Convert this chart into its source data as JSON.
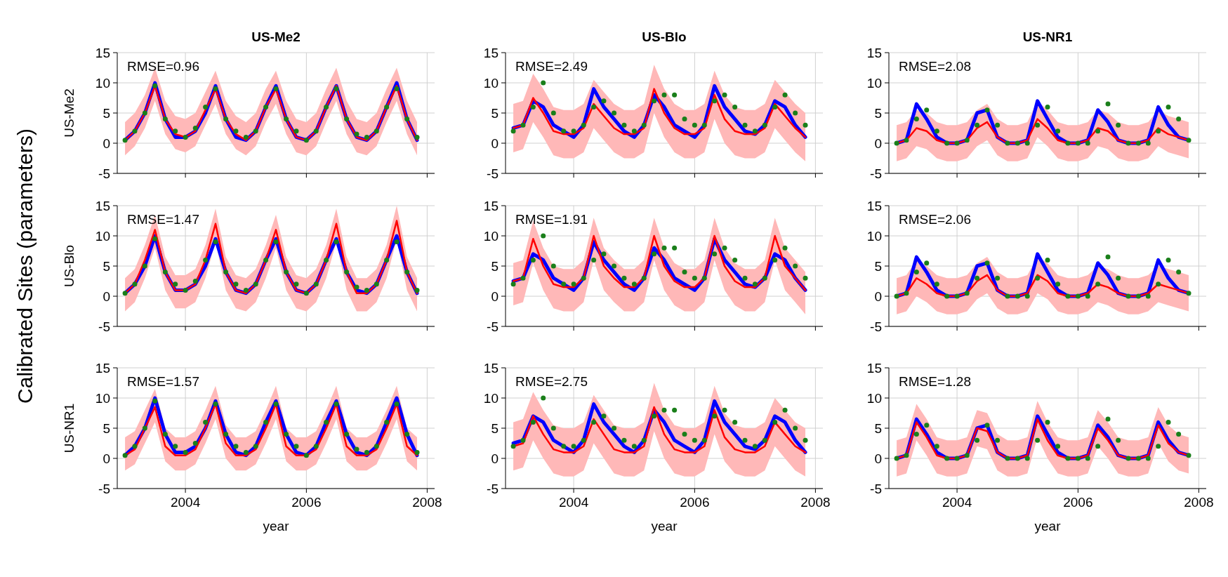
{
  "chart_data": [
    {
      "type": "line",
      "title": "US-Me2",
      "ylabel": "US-Me2",
      "annotations": [
        "RMSE=0.96"
      ],
      "tick_labels": "y",
      "grid": true,
      "xlim": [
        "2002-11-15",
        "2008-02-15"
      ],
      "xticks": [
        "2004",
        "2006",
        "2008"
      ],
      "ylim": [
        -5,
        15
      ],
      "yticks": [
        -5,
        0,
        5,
        10,
        15
      ],
      "x": [
        "2003-01",
        "2003-03",
        "2003-05",
        "2003-07",
        "2003-09",
        "2003-11",
        "2004-01",
        "2004-03",
        "2004-05",
        "2004-07",
        "2004-09",
        "2004-11",
        "2005-01",
        "2005-03",
        "2005-05",
        "2005-07",
        "2005-09",
        "2005-11",
        "2006-01",
        "2006-03",
        "2006-05",
        "2006-07",
        "2006-09",
        "2006-11",
        "2007-01",
        "2007-03",
        "2007-05",
        "2007-07",
        "2007-09",
        "2007-11"
      ],
      "series": [
        {
          "type": "line",
          "color": "#0000ff",
          "values": [
            0.5,
            2,
            5,
            10,
            4,
            1,
            1,
            2,
            5,
            9.5,
            4,
            1,
            0.5,
            2,
            6,
            9.5,
            4,
            1,
            0.5,
            2,
            6,
            9.5,
            4,
            1,
            0.5,
            2,
            6,
            10,
            4,
            0.5
          ]
        },
        {
          "type": "line",
          "color": "#ff0000",
          "values": [
            0.5,
            2,
            5,
            9.5,
            4,
            1.5,
            1,
            2,
            5.5,
            9,
            4,
            1.5,
            0.5,
            2,
            6,
            9,
            4,
            1,
            0.5,
            2,
            6,
            9.5,
            4,
            1,
            0.5,
            2,
            6,
            9.5,
            4,
            0.5
          ],
          "lower": [
            -2,
            -0.5,
            2.5,
            7,
            1.5,
            -1,
            -1.5,
            -0.5,
            3,
            6.5,
            1.5,
            -1,
            -2,
            -0.5,
            3.5,
            6.5,
            1.5,
            -1.5,
            -2,
            -0.5,
            3.5,
            7,
            1.5,
            -1.5,
            -2,
            -0.5,
            3.5,
            7,
            1.5,
            -2
          ],
          "upper": [
            3.5,
            5,
            8,
            12.5,
            7,
            4.5,
            4,
            5,
            8.5,
            12,
            7,
            4.5,
            3.5,
            5,
            9,
            12,
            7,
            4,
            3.5,
            5,
            9,
            12.5,
            7,
            4,
            3.5,
            5,
            9,
            12.5,
            7,
            3.5
          ]
        },
        {
          "type": "scatter",
          "marker": "circle",
          "color": "#1a7f1a",
          "values": [
            0.5,
            2,
            5,
            9.5,
            4,
            2,
            1,
            2.5,
            6,
            9,
            4,
            2,
            1,
            2,
            6,
            9,
            4,
            2,
            0.5,
            2,
            6,
            9,
            4,
            1.5,
            1,
            2,
            6,
            9,
            4,
            1
          ]
        }
      ]
    },
    {
      "type": "line",
      "title": "US-Blo",
      "annotations": [
        "RMSE=2.49"
      ],
      "tick_labels": "y",
      "grid": true,
      "xlim": [
        "2002-11-15",
        "2008-02-15"
      ],
      "xticks": [
        "2004",
        "2006",
        "2008"
      ],
      "ylim": [
        -5,
        15
      ],
      "yticks": [
        -5,
        0,
        5,
        10,
        15
      ],
      "x": [
        "2003-01",
        "2003-03",
        "2003-05",
        "2003-07",
        "2003-09",
        "2003-11",
        "2004-01",
        "2004-03",
        "2004-05",
        "2004-07",
        "2004-09",
        "2004-11",
        "2005-01",
        "2005-03",
        "2005-05",
        "2005-07",
        "2005-09",
        "2005-11",
        "2006-01",
        "2006-03",
        "2006-05",
        "2006-07",
        "2006-09",
        "2006-11",
        "2007-01",
        "2007-03",
        "2007-05",
        "2007-07",
        "2007-09",
        "2007-11"
      ],
      "series": [
        {
          "type": "line",
          "color": "#0000ff",
          "values": [
            2.5,
            3,
            7,
            6,
            3,
            2,
            1,
            3,
            9,
            6,
            4,
            2,
            1,
            3,
            8,
            6,
            3,
            2,
            1,
            3,
            9.5,
            6,
            4,
            2,
            1.5,
            3,
            7,
            6,
            3,
            1
          ]
        },
        {
          "type": "line",
          "color": "#ff0000",
          "values": [
            2.5,
            3,
            7.5,
            5,
            2,
            1.5,
            1.5,
            2.5,
            6.5,
            4.5,
            2.5,
            1.5,
            1.5,
            2.5,
            9,
            5,
            2.5,
            1.5,
            1.5,
            2.5,
            8,
            4,
            2,
            1.5,
            1.5,
            2.5,
            6.5,
            4.5,
            2.5,
            1
          ],
          "lower": [
            -1.5,
            -1,
            3.5,
            1,
            -2,
            -2.5,
            -2.5,
            -1.5,
            2.5,
            0.5,
            -1.5,
            -2.5,
            -2.5,
            -1.5,
            5,
            1,
            -1.5,
            -2.5,
            -2.5,
            -1.5,
            4,
            0,
            -2,
            -2.5,
            -2.5,
            -1.5,
            2.5,
            0.5,
            -1.5,
            -3
          ],
          "upper": [
            6.5,
            7,
            11.5,
            9,
            6,
            5.5,
            5.5,
            6.5,
            10.5,
            8.5,
            6.5,
            5.5,
            5.5,
            6.5,
            13,
            9,
            6.5,
            5.5,
            5.5,
            6.5,
            12,
            8,
            6,
            5.5,
            5.5,
            6.5,
            10.5,
            8.5,
            6.5,
            5
          ]
        },
        {
          "type": "scatter",
          "marker": "circle",
          "color": "#1a7f1a",
          "values": [
            2,
            3,
            6,
            10,
            5,
            2,
            2,
            3,
            6,
            7,
            5,
            3,
            2,
            3,
            7,
            8,
            8,
            4,
            3,
            3,
            7,
            8,
            6,
            3,
            2,
            3,
            6,
            8,
            5,
            3
          ]
        }
      ]
    },
    {
      "type": "line",
      "title": "US-NR1",
      "annotations": [
        "RMSE=2.08"
      ],
      "tick_labels": "y",
      "grid": true,
      "xlim": [
        "2002-11-15",
        "2008-02-15"
      ],
      "xticks": [
        "2004",
        "2006",
        "2008"
      ],
      "ylim": [
        -5,
        15
      ],
      "yticks": [
        -5,
        0,
        5,
        10,
        15
      ],
      "x": [
        "2003-01",
        "2003-03",
        "2003-05",
        "2003-07",
        "2003-09",
        "2003-11",
        "2004-01",
        "2004-03",
        "2004-05",
        "2004-07",
        "2004-09",
        "2004-11",
        "2005-01",
        "2005-03",
        "2005-05",
        "2005-07",
        "2005-09",
        "2005-11",
        "2006-01",
        "2006-03",
        "2006-05",
        "2006-07",
        "2006-09",
        "2006-11",
        "2007-01",
        "2007-03",
        "2007-05",
        "2007-07",
        "2007-09",
        "2007-11"
      ],
      "series": [
        {
          "type": "line",
          "color": "#0000ff",
          "values": [
            0,
            0.5,
            6.5,
            4,
            1,
            0,
            0,
            0.5,
            5,
            5.5,
            1,
            0,
            0,
            0.5,
            7,
            4,
            1,
            0,
            0,
            0.5,
            5.5,
            3.5,
            0.5,
            0,
            0,
            0.5,
            6,
            3,
            1,
            0.5
          ]
        },
        {
          "type": "line",
          "color": "#ff0000",
          "values": [
            0,
            0.5,
            2.5,
            2,
            0.5,
            0,
            0,
            0.5,
            2.5,
            3.5,
            1,
            0,
            0,
            0.5,
            4,
            2.5,
            0.5,
            0,
            0,
            0.5,
            2.5,
            2,
            0.5,
            0,
            0,
            0.5,
            2.5,
            1.5,
            1,
            0.5
          ],
          "lower": [
            -3,
            -2.5,
            -0.5,
            -1,
            -2.5,
            -3,
            -3,
            -2.5,
            -0.5,
            0.5,
            -2,
            -3,
            -3,
            -2.5,
            1,
            -0.5,
            -2.5,
            -3,
            -3,
            -2.5,
            -0.5,
            -1,
            -2.5,
            -3,
            -3,
            -2.5,
            -0.5,
            -1.5,
            -2,
            -2.5
          ],
          "upper": [
            3,
            3.5,
            5.5,
            5,
            3.5,
            3,
            3,
            3.5,
            5.5,
            6.5,
            4,
            3,
            3,
            3.5,
            7,
            5.5,
            3.5,
            3,
            3,
            3.5,
            5.5,
            5,
            3.5,
            3,
            3,
            3.5,
            5.5,
            4.5,
            4,
            3.5
          ]
        },
        {
          "type": "scatter",
          "marker": "circle",
          "color": "#1a7f1a",
          "values": [
            0,
            0.5,
            4,
            5.5,
            2,
            0,
            0,
            0.5,
            3,
            5.5,
            3,
            0,
            0,
            0,
            3,
            6,
            2,
            0,
            0,
            0,
            2,
            6.5,
            3,
            0,
            0,
            0,
            2,
            6,
            4,
            0.5
          ]
        }
      ]
    },
    {
      "type": "line",
      "ylabel": "US-Blo",
      "annotations": [
        "RMSE=1.47",
        "Calibrated Sites (parameters)"
      ],
      "tick_labels": "y",
      "grid": true,
      "xlim": [
        "2002-11-15",
        "2008-02-15"
      ],
      "xticks": [
        "2004",
        "2006",
        "2008"
      ],
      "ylim": [
        -5,
        15
      ],
      "yticks": [
        -5,
        0,
        5,
        10,
        15
      ],
      "x": [
        "2003-01",
        "2003-03",
        "2003-05",
        "2003-07",
        "2003-09",
        "2003-11",
        "2004-01",
        "2004-03",
        "2004-05",
        "2004-07",
        "2004-09",
        "2004-11",
        "2005-01",
        "2005-03",
        "2005-05",
        "2005-07",
        "2005-09",
        "2005-11",
        "2006-01",
        "2006-03",
        "2006-05",
        "2006-07",
        "2006-09",
        "2006-11",
        "2007-01",
        "2007-03",
        "2007-05",
        "2007-07",
        "2007-09",
        "2007-11"
      ],
      "series": [
        {
          "type": "line",
          "color": "#0000ff",
          "values": [
            0.5,
            2,
            5,
            10,
            4,
            1,
            1,
            2,
            5,
            9.5,
            4,
            1,
            0.5,
            2,
            6,
            9.5,
            4,
            1,
            0.5,
            2,
            6,
            9.5,
            4,
            1,
            0.5,
            2,
            6,
            10,
            4,
            0.5
          ]
        },
        {
          "type": "line",
          "color": "#ff0000",
          "values": [
            0.5,
            2,
            6,
            11,
            4,
            1,
            1,
            2,
            6,
            12,
            4,
            1,
            0.5,
            2,
            6,
            11,
            4,
            1,
            0.5,
            2,
            6,
            12,
            4,
            0.5,
            0.5,
            2,
            6,
            12.5,
            4,
            0.5
          ],
          "lower": [
            -2.5,
            -1,
            3,
            8,
            1,
            -2,
            -2,
            -1,
            3,
            9,
            1,
            -2,
            -2.5,
            -1,
            3,
            8,
            1,
            -2,
            -2.5,
            -1,
            3,
            9,
            1,
            -2.5,
            -2.5,
            -1,
            3,
            9.5,
            1,
            -2.5
          ],
          "upper": [
            3,
            4.5,
            8.5,
            13.5,
            6.5,
            3.5,
            3.5,
            4.5,
            8.5,
            14.5,
            6.5,
            3.5,
            3,
            4.5,
            8.5,
            13.5,
            6.5,
            3.5,
            3,
            4.5,
            8.5,
            14.5,
            6.5,
            3,
            3,
            4.5,
            8.5,
            15,
            6.5,
            3
          ]
        },
        {
          "type": "scatter",
          "marker": "circle",
          "color": "#1a7f1a",
          "values": [
            0.5,
            2,
            5,
            9.5,
            4,
            2,
            1,
            2.5,
            6,
            9,
            4,
            2,
            1,
            2,
            6,
            9,
            4,
            2,
            0.5,
            2,
            6,
            9,
            4,
            1.5,
            1,
            2,
            6,
            9,
            4,
            1
          ]
        }
      ]
    },
    {
      "type": "line",
      "annotations": [
        "RMSE=1.91"
      ],
      "tick_labels": "y",
      "grid": true,
      "xlim": [
        "2002-11-15",
        "2008-02-15"
      ],
      "xticks": [
        "2004",
        "2006",
        "2008"
      ],
      "ylim": [
        -5,
        15
      ],
      "yticks": [
        -5,
        0,
        5,
        10,
        15
      ],
      "x": [
        "2003-01",
        "2003-03",
        "2003-05",
        "2003-07",
        "2003-09",
        "2003-11",
        "2004-01",
        "2004-03",
        "2004-05",
        "2004-07",
        "2004-09",
        "2004-11",
        "2005-01",
        "2005-03",
        "2005-05",
        "2005-07",
        "2005-09",
        "2005-11",
        "2006-01",
        "2006-03",
        "2006-05",
        "2006-07",
        "2006-09",
        "2006-11",
        "2007-01",
        "2007-03",
        "2007-05",
        "2007-07",
        "2007-09",
        "2007-11"
      ],
      "series": [
        {
          "type": "line",
          "color": "#0000ff",
          "values": [
            2.5,
            3,
            7,
            6,
            3,
            2,
            1,
            3,
            9,
            6,
            4,
            2,
            1,
            3,
            8,
            6,
            3,
            2,
            1,
            3,
            9.5,
            6,
            4,
            2,
            1.5,
            3,
            7,
            6,
            3,
            1
          ]
        },
        {
          "type": "line",
          "color": "#ff0000",
          "values": [
            2.5,
            3,
            9.5,
            5,
            2,
            1.5,
            1.5,
            3,
            10,
            5,
            3,
            1.5,
            1.5,
            3,
            10,
            5,
            2.5,
            1.5,
            1.5,
            3,
            10,
            5,
            2.5,
            1.5,
            1.5,
            3,
            10,
            5,
            3,
            1
          ],
          "lower": [
            -1.5,
            -1,
            5.5,
            1,
            -2,
            -2.5,
            -2.5,
            -1,
            6,
            1,
            -1,
            -2.5,
            -2.5,
            -1,
            6,
            1,
            -1.5,
            -2.5,
            -2.5,
            -1,
            6,
            1,
            -1.5,
            -2.5,
            -2.5,
            -1,
            6,
            1,
            -1,
            -3
          ],
          "upper": [
            5.5,
            6,
            12.5,
            8,
            5,
            4.5,
            4.5,
            6,
            13,
            8,
            6,
            4.5,
            4.5,
            6,
            13,
            8,
            5.5,
            4.5,
            4.5,
            6,
            13,
            8,
            5.5,
            4.5,
            4.5,
            6,
            13,
            8,
            6,
            4
          ]
        },
        {
          "type": "scatter",
          "marker": "circle",
          "color": "#1a7f1a",
          "values": [
            2,
            3,
            6,
            10,
            5,
            2,
            2,
            3,
            6,
            7,
            5,
            3,
            2,
            3,
            7,
            8,
            8,
            4,
            3,
            3,
            7,
            8,
            6,
            3,
            2,
            3,
            6,
            8,
            5,
            3
          ]
        }
      ]
    },
    {
      "type": "line",
      "annotations": [
        "RMSE=2.06"
      ],
      "tick_labels": "y",
      "grid": true,
      "xlim": [
        "2002-11-15",
        "2008-02-15"
      ],
      "xticks": [
        "2004",
        "2006",
        "2008"
      ],
      "ylim": [
        -5,
        15
      ],
      "yticks": [
        -5,
        0,
        5,
        10,
        15
      ],
      "x": [
        "2003-01",
        "2003-03",
        "2003-05",
        "2003-07",
        "2003-09",
        "2003-11",
        "2004-01",
        "2004-03",
        "2004-05",
        "2004-07",
        "2004-09",
        "2004-11",
        "2005-01",
        "2005-03",
        "2005-05",
        "2005-07",
        "2005-09",
        "2005-11",
        "2006-01",
        "2006-03",
        "2006-05",
        "2006-07",
        "2006-09",
        "2006-11",
        "2007-01",
        "2007-03",
        "2007-05",
        "2007-07",
        "2007-09",
        "2007-11"
      ],
      "series": [
        {
          "type": "line",
          "color": "#0000ff",
          "values": [
            0,
            0.5,
            6.5,
            4,
            1,
            0,
            0,
            0.5,
            5,
            5.5,
            1,
            0,
            0,
            0.5,
            7,
            4,
            1,
            0,
            0,
            0.5,
            5.5,
            3.5,
            0.5,
            0,
            0,
            0.5,
            6,
            3,
            1,
            0.5
          ]
        },
        {
          "type": "line",
          "color": "#ff0000",
          "values": [
            0,
            0.5,
            3,
            2,
            0.5,
            0,
            0,
            0.5,
            2.5,
            3.5,
            1,
            0,
            0,
            0.5,
            3.5,
            2.5,
            0.5,
            0,
            0,
            0.5,
            2,
            1.5,
            0.5,
            0,
            0,
            0.5,
            2,
            1.5,
            1,
            0.5
          ],
          "lower": [
            -3,
            -2.5,
            0,
            -1,
            -2.5,
            -3,
            -3,
            -2.5,
            -0.5,
            0.5,
            -2,
            -3,
            -3,
            -2.5,
            0.5,
            -0.5,
            -2.5,
            -3,
            -3,
            -2.5,
            -1,
            -1.5,
            -2.5,
            -3,
            -3,
            -2.5,
            -1,
            -1.5,
            -2,
            -2.5
          ],
          "upper": [
            3,
            3.5,
            6,
            5,
            3.5,
            3,
            3,
            3.5,
            5.5,
            6.5,
            4,
            3,
            3,
            3.5,
            6.5,
            5.5,
            3.5,
            3,
            3,
            3.5,
            5,
            4.5,
            3.5,
            3,
            3,
            3.5,
            5,
            4.5,
            4,
            3.5
          ]
        },
        {
          "type": "scatter",
          "marker": "circle",
          "color": "#1a7f1a",
          "values": [
            0,
            0.5,
            4,
            5.5,
            2,
            0,
            0,
            0.5,
            3,
            5.5,
            3,
            0,
            0,
            0,
            3,
            6,
            2,
            0,
            0,
            0,
            2,
            6.5,
            3,
            0,
            0,
            0,
            2,
            6,
            4,
            0.5
          ]
        }
      ]
    },
    {
      "type": "line",
      "ylabel": "US-NR1",
      "xlabel": "year",
      "annotations": [
        "RMSE=1.57"
      ],
      "grid": true,
      "xlim": [
        "2002-11-15",
        "2008-02-15"
      ],
      "xticks": [
        "2004",
        "2006",
        "2008"
      ],
      "ylim": [
        -5,
        15
      ],
      "yticks": [
        -5,
        0,
        5,
        10,
        15
      ],
      "x": [
        "2003-01",
        "2003-03",
        "2003-05",
        "2003-07",
        "2003-09",
        "2003-11",
        "2004-01",
        "2004-03",
        "2004-05",
        "2004-07",
        "2004-09",
        "2004-11",
        "2005-01",
        "2005-03",
        "2005-05",
        "2005-07",
        "2005-09",
        "2005-11",
        "2006-01",
        "2006-03",
        "2006-05",
        "2006-07",
        "2006-09",
        "2006-11",
        "2007-01",
        "2007-03",
        "2007-05",
        "2007-07",
        "2007-09",
        "2007-11"
      ],
      "series": [
        {
          "type": "line",
          "color": "#0000ff",
          "values": [
            0.5,
            2,
            5,
            10,
            4,
            1,
            1,
            2,
            5,
            9.5,
            4,
            1,
            0.5,
            2,
            6,
            9.5,
            4,
            1,
            0.5,
            2,
            6,
            9.5,
            4,
            1,
            0.5,
            2,
            6,
            10,
            4,
            0.5
          ]
        },
        {
          "type": "line",
          "color": "#ff0000",
          "values": [
            0.5,
            1.5,
            5,
            8.5,
            2,
            0.5,
            0.5,
            1.5,
            5,
            9,
            2.5,
            0.5,
            0.5,
            1.5,
            5,
            9,
            2,
            0.5,
            0.5,
            1.5,
            5,
            9,
            2,
            0.5,
            0.5,
            1.5,
            5,
            9,
            2,
            0.5
          ],
          "lower": [
            -2,
            -1,
            2.5,
            6,
            -0.5,
            -2,
            -2,
            -1,
            2.5,
            6.5,
            0,
            -2,
            -2,
            -1,
            2.5,
            6.5,
            -0.5,
            -2,
            -2,
            -1,
            2.5,
            6.5,
            -0.5,
            -2,
            -2,
            -1,
            2.5,
            6.5,
            -0.5,
            -2
          ],
          "upper": [
            3.5,
            4.5,
            8,
            11.5,
            5,
            3.5,
            3.5,
            4.5,
            8,
            12,
            5.5,
            3.5,
            3.5,
            4.5,
            8,
            12,
            5,
            3.5,
            3.5,
            4.5,
            8,
            12,
            5,
            3.5,
            3.5,
            4.5,
            8,
            12,
            5,
            3.5
          ]
        },
        {
          "type": "scatter",
          "marker": "circle",
          "color": "#1a7f1a",
          "values": [
            0.5,
            2,
            5,
            9.5,
            4,
            2,
            1,
            2.5,
            6,
            9,
            4,
            2,
            1,
            2,
            6,
            9,
            4,
            2,
            0.5,
            2,
            6,
            9,
            4,
            1.5,
            1,
            2,
            6,
            9,
            4,
            1
          ]
        }
      ]
    },
    {
      "type": "line",
      "xlabel": "year",
      "annotations": [
        "RMSE=2.75"
      ],
      "grid": true,
      "xlim": [
        "2002-11-15",
        "2008-02-15"
      ],
      "xticks": [
        "2004",
        "2006",
        "2008"
      ],
      "ylim": [
        -5,
        15
      ],
      "yticks": [
        -5,
        0,
        5,
        10,
        15
      ],
      "x": [
        "2003-01",
        "2003-03",
        "2003-05",
        "2003-07",
        "2003-09",
        "2003-11",
        "2004-01",
        "2004-03",
        "2004-05",
        "2004-07",
        "2004-09",
        "2004-11",
        "2005-01",
        "2005-03",
        "2005-05",
        "2005-07",
        "2005-09",
        "2005-11",
        "2006-01",
        "2006-03",
        "2006-05",
        "2006-07",
        "2006-09",
        "2006-11",
        "2007-01",
        "2007-03",
        "2007-05",
        "2007-07",
        "2007-09",
        "2007-11"
      ],
      "series": [
        {
          "type": "line",
          "color": "#0000ff",
          "values": [
            2.5,
            3,
            7,
            6,
            3,
            2,
            1,
            3,
            9,
            6,
            4,
            2,
            1,
            3,
            8,
            6,
            3,
            2,
            1,
            3,
            9.5,
            6,
            4,
            2,
            1.5,
            3,
            7,
            6,
            3,
            1
          ]
        },
        {
          "type": "line",
          "color": "#ff0000",
          "values": [
            2,
            2.5,
            7,
            4,
            1.5,
            1,
            1,
            2,
            6.5,
            4,
            1.5,
            1,
            1,
            2,
            8.5,
            4,
            1.5,
            1,
            1,
            2,
            8,
            3.5,
            1.5,
            1,
            1,
            2,
            6,
            4,
            2,
            1
          ],
          "lower": [
            -2,
            -1.5,
            3,
            0,
            -2.5,
            -3,
            -3,
            -2,
            2.5,
            0,
            -2.5,
            -3,
            -3,
            -2,
            4.5,
            0,
            -2.5,
            -3,
            -3,
            -2,
            4,
            -0.5,
            -2.5,
            -3,
            -3,
            -2,
            2,
            0,
            -2,
            -3
          ],
          "upper": [
            6,
            6.5,
            11,
            8,
            5.5,
            5,
            5,
            6,
            10.5,
            8,
            5.5,
            5,
            5,
            6,
            12.5,
            8,
            5.5,
            5,
            5,
            6,
            12,
            7.5,
            5.5,
            5,
            5,
            6,
            10,
            8,
            6,
            5
          ]
        },
        {
          "type": "scatter",
          "marker": "circle",
          "color": "#1a7f1a",
          "values": [
            2,
            3,
            6,
            10,
            5,
            2,
            2,
            3,
            6,
            7,
            5,
            3,
            2,
            3,
            7,
            8,
            8,
            4,
            3,
            3,
            7,
            8,
            6,
            3,
            2,
            3,
            6,
            8,
            5,
            3
          ]
        }
      ]
    },
    {
      "type": "line",
      "xlabel": "year",
      "annotations": [
        "RMSE=1.28"
      ],
      "grid": true,
      "xlim": [
        "2002-11-15",
        "2008-02-15"
      ],
      "xticks": [
        "2004",
        "2006",
        "2008"
      ],
      "ylim": [
        -5,
        15
      ],
      "yticks": [
        -5,
        0,
        5,
        10,
        15
      ],
      "x": [
        "2003-01",
        "2003-03",
        "2003-05",
        "2003-07",
        "2003-09",
        "2003-11",
        "2004-01",
        "2004-03",
        "2004-05",
        "2004-07",
        "2004-09",
        "2004-11",
        "2005-01",
        "2005-03",
        "2005-05",
        "2005-07",
        "2005-09",
        "2005-11",
        "2006-01",
        "2006-03",
        "2006-05",
        "2006-07",
        "2006-09",
        "2006-11",
        "2007-01",
        "2007-03",
        "2007-05",
        "2007-07",
        "2007-09",
        "2007-11"
      ],
      "series": [
        {
          "type": "line",
          "color": "#0000ff",
          "values": [
            0,
            0.5,
            6.5,
            4,
            1,
            0,
            0,
            0.5,
            5,
            5.5,
            1,
            0,
            0,
            0.5,
            7,
            4,
            1,
            0,
            0,
            0.5,
            5.5,
            3.5,
            0.5,
            0,
            0,
            0.5,
            6,
            3,
            1,
            0.5
          ]
        },
        {
          "type": "line",
          "color": "#ff0000",
          "values": [
            0,
            0.5,
            6,
            3.5,
            0.5,
            0,
            0,
            0.5,
            5,
            4.5,
            1,
            0,
            0,
            0.5,
            6.5,
            3,
            0.5,
            0,
            0,
            0.5,
            5,
            3,
            0.5,
            0,
            0,
            0.5,
            5.5,
            2.5,
            1,
            0.5
          ],
          "lower": [
            -3,
            -2.5,
            3,
            0.5,
            -2.5,
            -3,
            -3,
            -2.5,
            2,
            1.5,
            -2,
            -3,
            -3,
            -2.5,
            3.5,
            0,
            -2.5,
            -3,
            -3,
            -2.5,
            2,
            0,
            -2.5,
            -3,
            -3,
            -2.5,
            2.5,
            -0.5,
            -2,
            -2.5
          ],
          "upper": [
            3,
            3.5,
            9,
            6.5,
            3.5,
            3,
            3,
            3.5,
            8,
            7.5,
            4,
            3,
            3,
            3.5,
            9.5,
            6,
            3.5,
            3,
            3,
            3.5,
            8,
            6,
            3.5,
            3,
            3,
            3.5,
            8.5,
            5.5,
            4,
            3.5
          ]
        },
        {
          "type": "scatter",
          "marker": "circle",
          "color": "#1a7f1a",
          "values": [
            0,
            0.5,
            4,
            5.5,
            2,
            0,
            0,
            0.5,
            3,
            5.5,
            3,
            0,
            0,
            0,
            3,
            6,
            2,
            0,
            0,
            0,
            2,
            6.5,
            3,
            0,
            0,
            0,
            2,
            6,
            4,
            0.5
          ]
        }
      ]
    }
  ]
}
